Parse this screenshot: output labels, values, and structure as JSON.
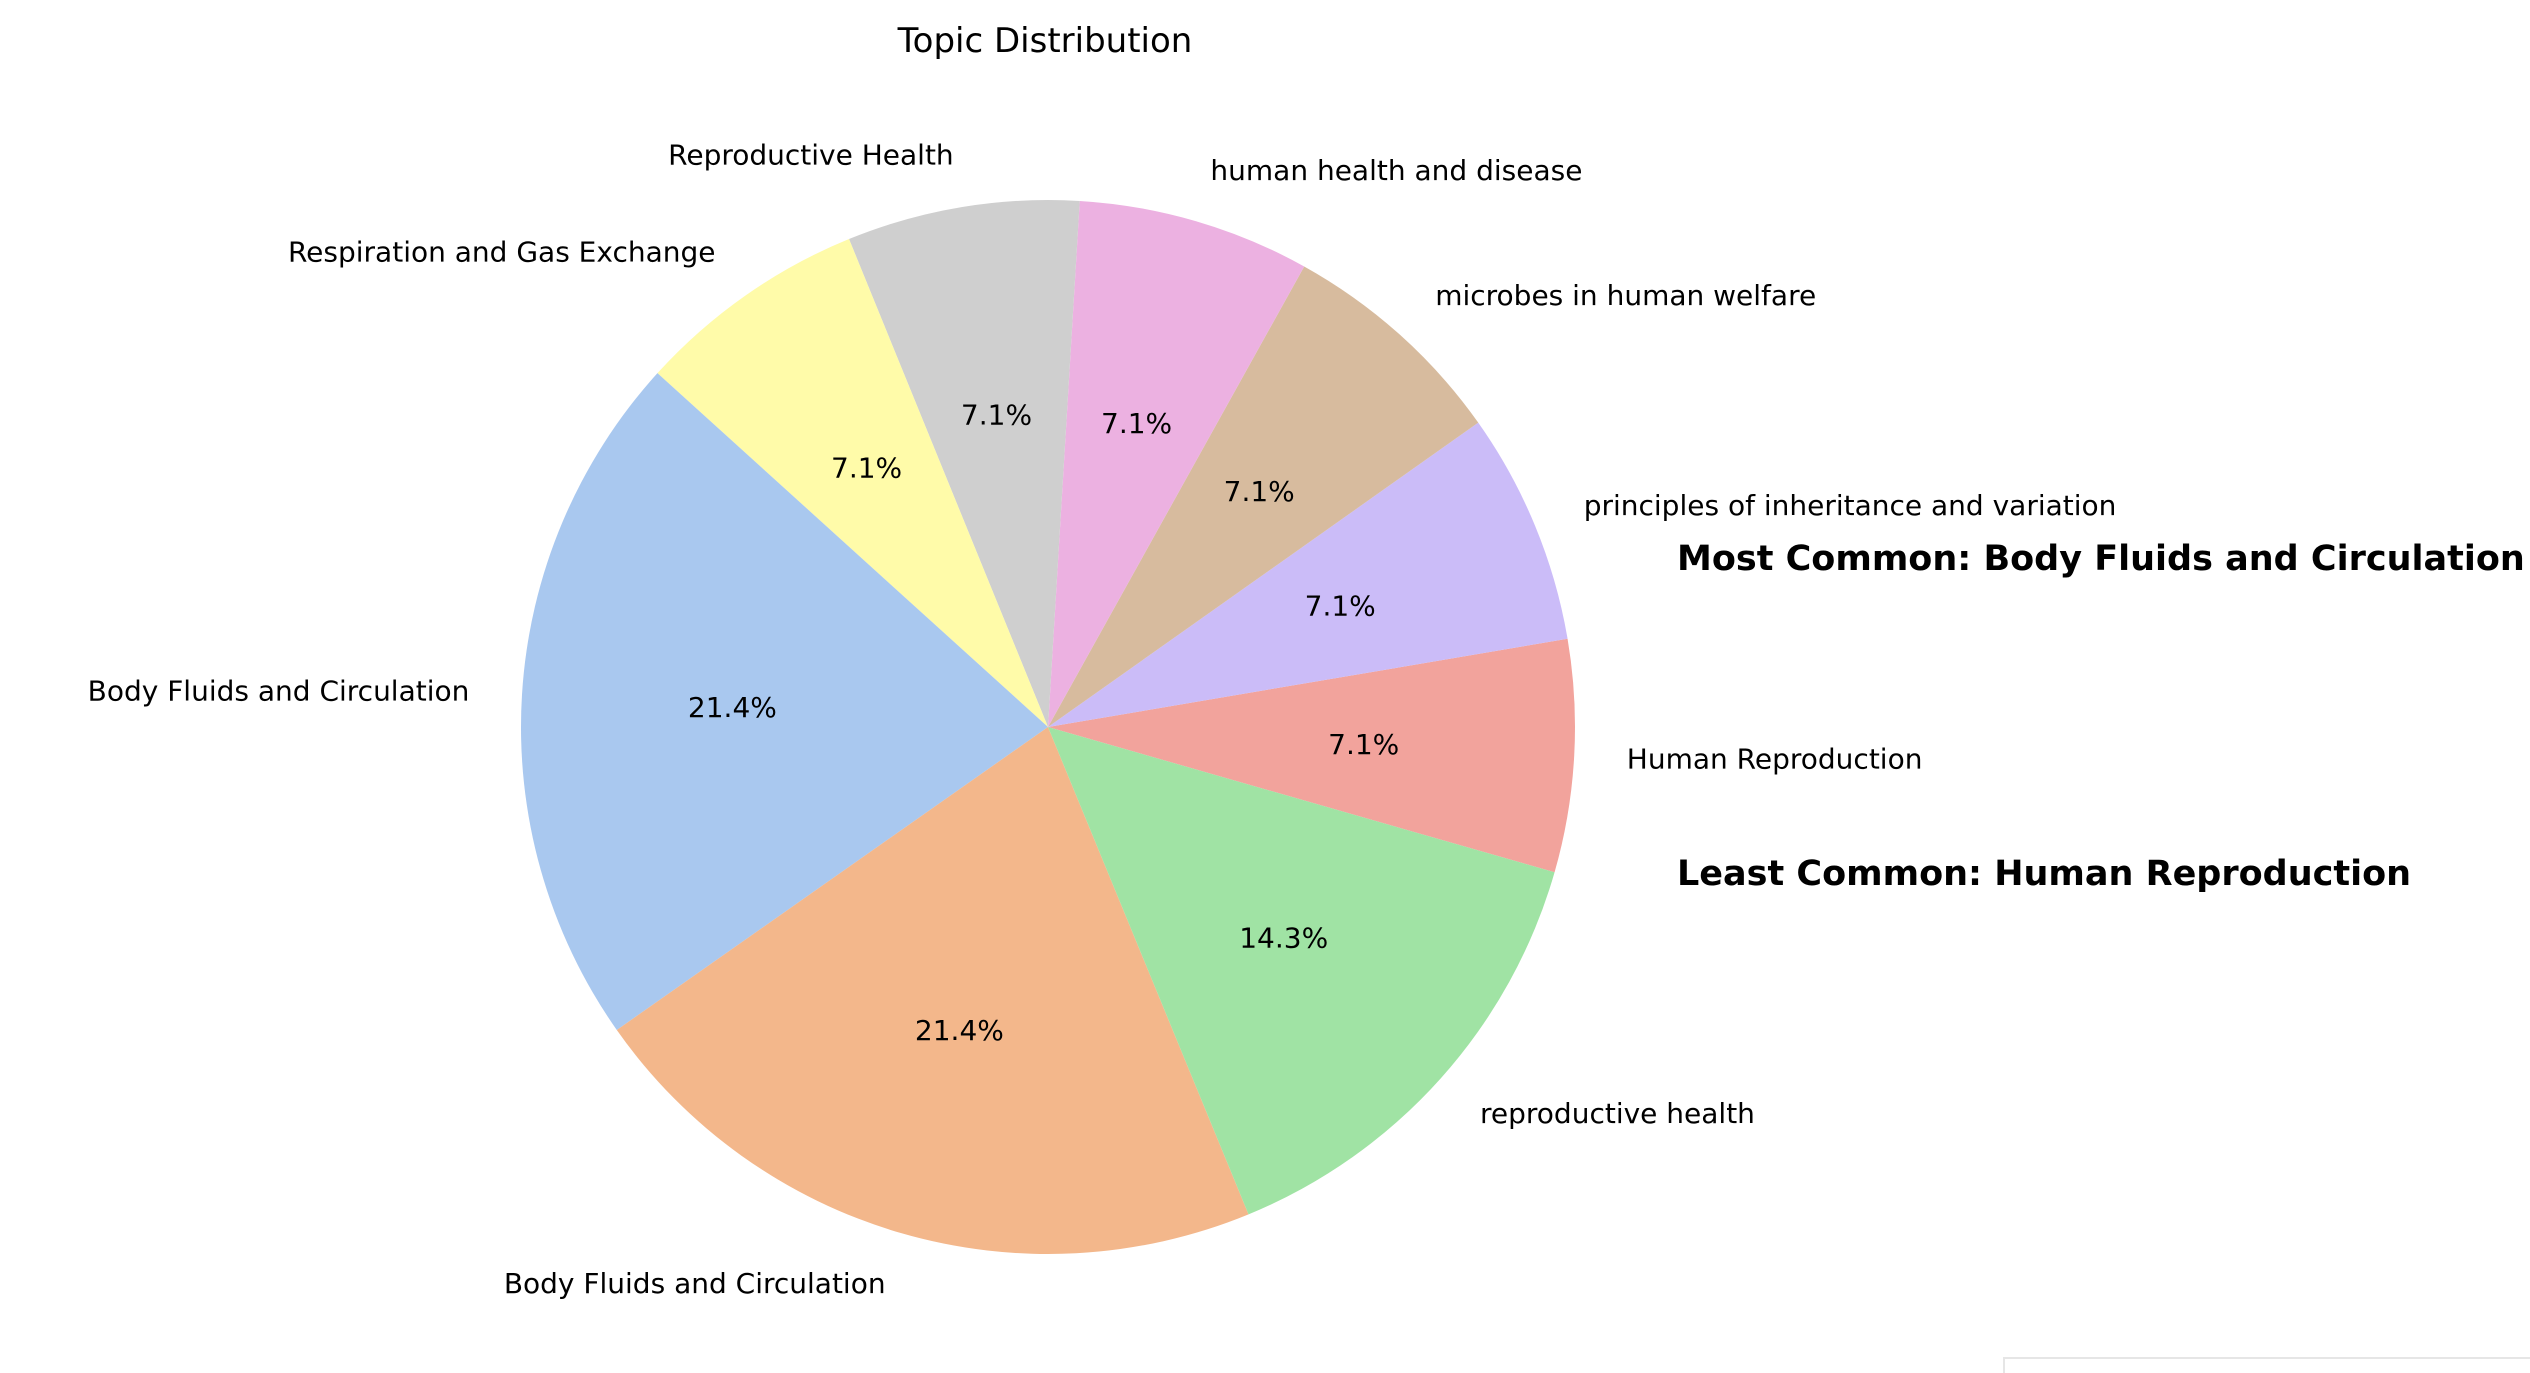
{
  "chart_data": {
    "type": "pie",
    "title": "Topic Distribution",
    "slices": [
      {
        "label": "Human Reproduction",
        "value": 7.1,
        "pct": "7.1%",
        "color": "#f2a39c"
      },
      {
        "label": "principles of inheritance and variation",
        "value": 7.1,
        "pct": "7.1%",
        "color": "#cbbcf8"
      },
      {
        "label": "microbes in human welfare",
        "value": 7.1,
        "pct": "7.1%",
        "color": "#d7bb9e"
      },
      {
        "label": "human health and disease",
        "value": 7.1,
        "pct": "7.1%",
        "color": "#ecb1e1"
      },
      {
        "label": "Reproductive Health",
        "value": 7.1,
        "pct": "7.1%",
        "color": "#cfcfcf"
      },
      {
        "label": "Respiration and Gas Exchange",
        "value": 7.1,
        "pct": "7.1%",
        "color": "#fffba9"
      },
      {
        "label": "Body Fluids and Circulation",
        "value": 21.4,
        "pct": "21.4%",
        "color": "#a9c8ef"
      },
      {
        "label": "Body Fluids and Circulation",
        "value": 21.4,
        "pct": "21.4%",
        "color": "#f3b78b"
      },
      {
        "label": "reproductive health",
        "value": 14.3,
        "pct": "14.3%",
        "color": "#a0e3a4"
      }
    ],
    "start_angle_deg": -16,
    "direction": "counterclockwise",
    "annotations": [
      "Most Common: Body Fluids and Circulation",
      "Least Common: Human Reproduction"
    ]
  }
}
